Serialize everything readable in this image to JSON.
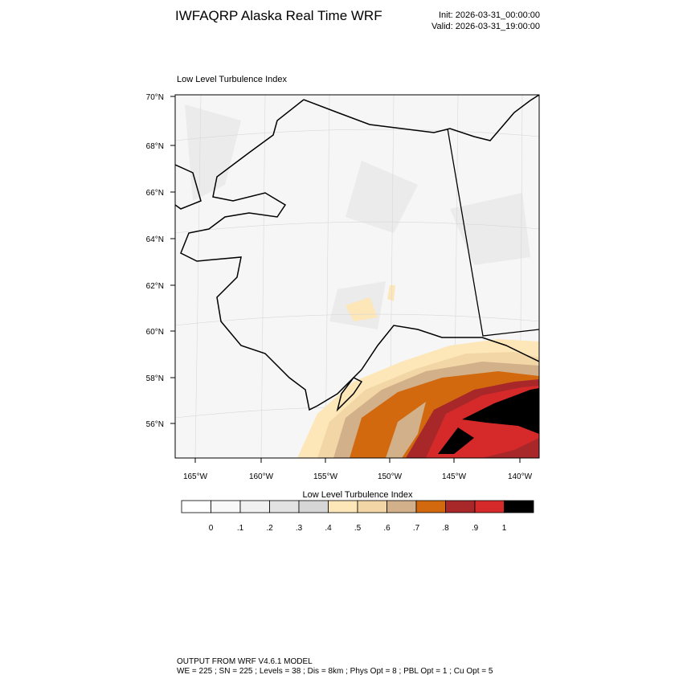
{
  "header": {
    "title": "IWFAQRP Alaska Real Time WRF",
    "init": "Init: 2026-03-31_00:00:00",
    "valid": "Valid: 2026-03-31_19:00:00"
  },
  "map": {
    "subtitle": "Low Level Turbulence Index",
    "lat_labels": [
      "70°N",
      "68°N",
      "66°N",
      "64°N",
      "62°N",
      "60°N",
      "58°N",
      "56°N"
    ],
    "lon_labels": [
      "165°W",
      "160°W",
      "155°W",
      "150°W",
      "145°W",
      "140°W"
    ]
  },
  "colorbar": {
    "title": "Low Level Turbulence Index",
    "colors": [
      "#ffffff",
      "#f8f8f8",
      "#f0f0f0",
      "#e2e2e2",
      "#d6d6d6",
      "#fde6b8",
      "#f2d6a6",
      "#d2b08a",
      "#d2690f",
      "#a8282a",
      "#d62a2a",
      "#000000"
    ],
    "labels": [
      "0",
      ".1",
      ".2",
      ".3",
      ".4",
      ".5",
      ".6",
      ".7",
      ".8",
      ".9",
      "1"
    ]
  },
  "footer": {
    "line1": "OUTPUT FROM WRF V4.6.1 MODEL",
    "line2": "WE = 225 ; SN = 225 ; Levels = 38 ; Dis = 8km ; Phys Opt = 8 ; PBL Opt = 1 ; Cu Opt = 5"
  }
}
